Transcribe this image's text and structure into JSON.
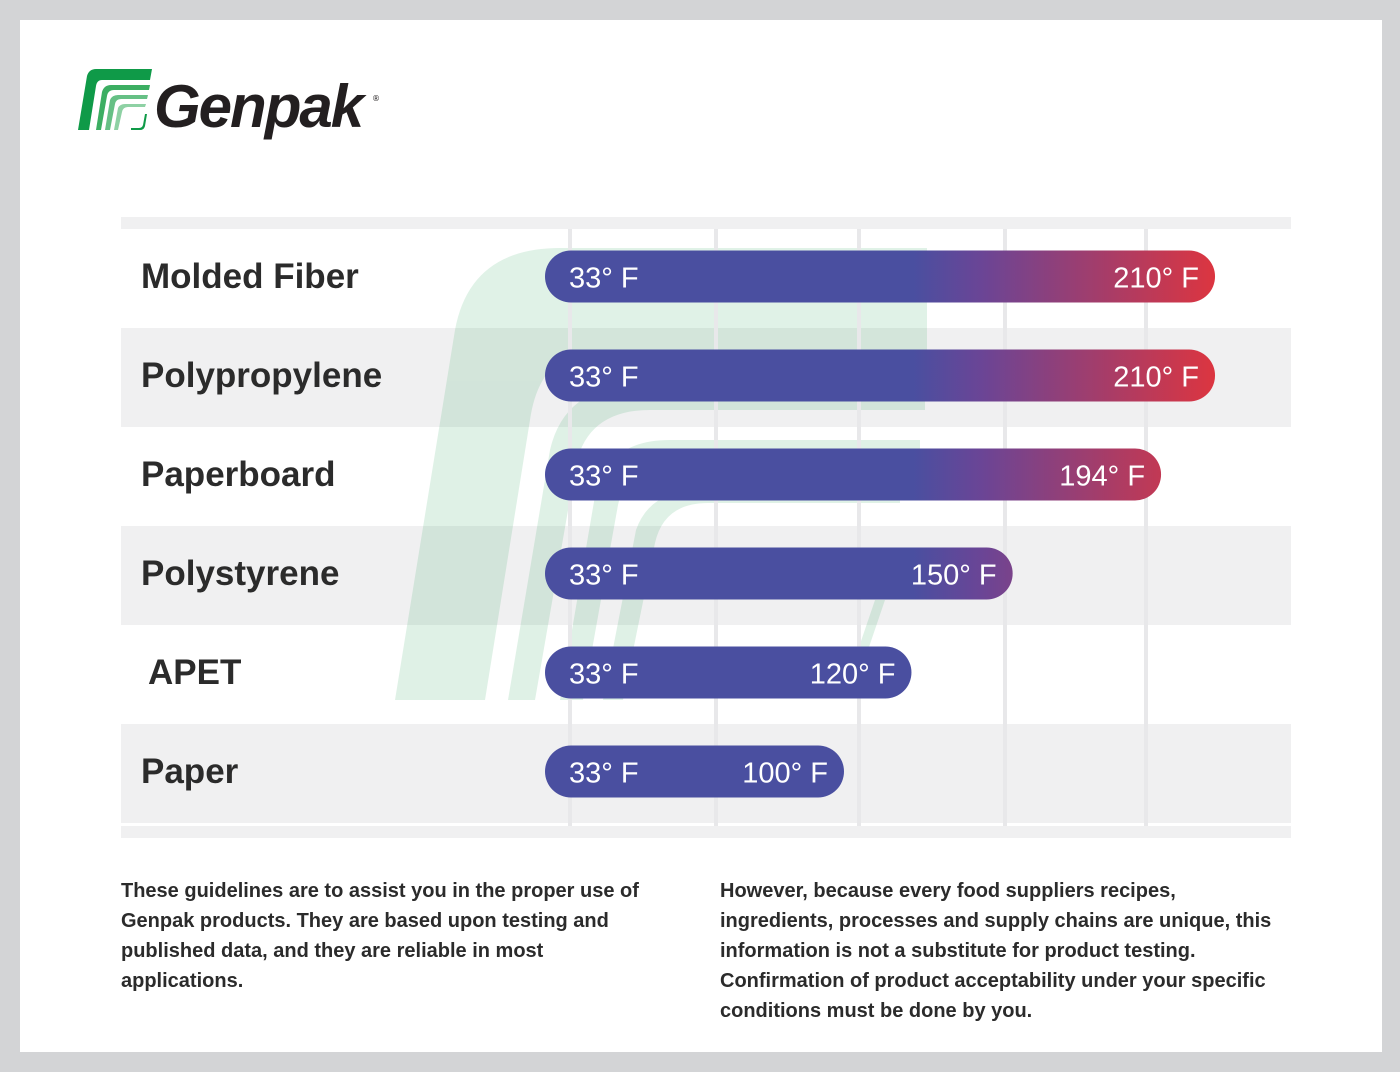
{
  "brand": {
    "name": "Genpak",
    "registered_mark": "®",
    "logo_color": "#0f9a48"
  },
  "chart_data": {
    "type": "bar",
    "orientation": "horizontal-range",
    "unit": "° F",
    "categories": [
      "Molded Fiber",
      "Polypropylene",
      "Paperboard",
      "Polystyrene",
      "APET",
      "Paper"
    ],
    "min_values": [
      33,
      33,
      33,
      33,
      33,
      33
    ],
    "max_values": [
      210,
      210,
      194,
      150,
      120,
      100
    ],
    "min_labels": [
      "33° F",
      "33° F",
      "33° F",
      "33° F",
      "33° F",
      "33° F"
    ],
    "max_labels": [
      "210° F",
      "210° F",
      "194° F",
      "150° F",
      "120° F",
      "100° F"
    ],
    "colors": {
      "cold": "#4a4fa0",
      "hot": "#dc3540",
      "row_alt": "#f0f0f1",
      "grid": "#e8e8ea"
    },
    "grid": true,
    "legend": "none"
  },
  "notes": {
    "left": "These guidelines are to assist you in the proper use of Genpak products. They are based upon testing and published data, and they are reliable in most applications.",
    "right": "However, because every food suppliers recipes, ingredients, processes and supply chains are unique, this information is not a substitute for product testing. Confirmation of product acceptability under your specific conditions must be done by you."
  }
}
